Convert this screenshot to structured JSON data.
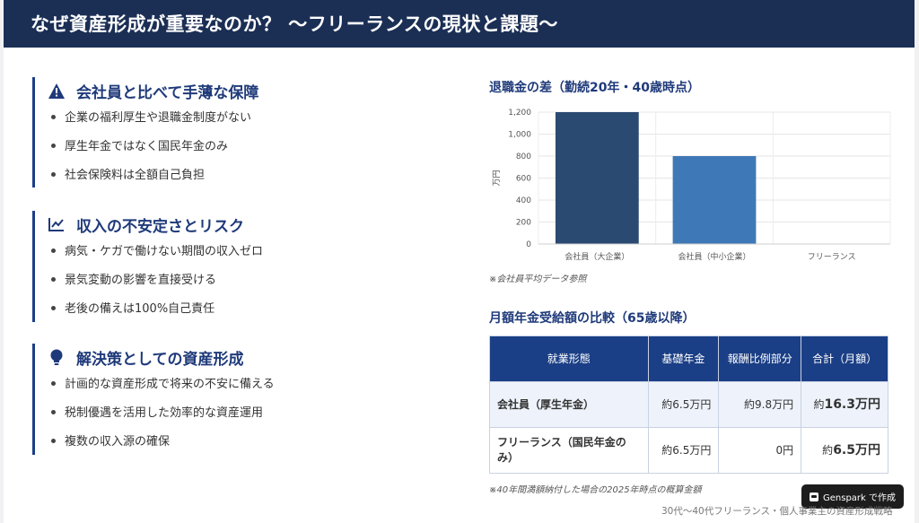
{
  "header": {
    "title": "なぜ資産形成が重要なのか？ 〜フリーランスの現状と課題〜"
  },
  "sections": [
    {
      "icon": "warning-icon",
      "title": "会社員と比べて手薄な保障",
      "bullets": [
        "企業の福利厚生や退職金制度がない",
        "厚生年金ではなく国民年金のみ",
        "社会保険料は全額自己負担"
      ]
    },
    {
      "icon": "trend-line-icon",
      "title": "収入の不安定さとリスク",
      "bullets": [
        "病気・ケガで働けない期間の収入ゼロ",
        "景気変動の影響を直接受ける",
        "老後の備えは100%自己責任"
      ]
    },
    {
      "icon": "lightbulb-icon",
      "title": "解決策としての資産形成",
      "bullets": [
        "計画的な資産形成で将来の不安に備える",
        "税制優遇を活用した効率的な資産運用",
        "複数の収入源の確保"
      ]
    }
  ],
  "chart_title": "退職金の差（勤続20年・40歳時点）",
  "chart_data": {
    "type": "bar",
    "categories": [
      "会社員（大企業）",
      "会社員（中小企業）",
      "フリーランス"
    ],
    "values": [
      1200,
      800,
      0
    ],
    "ylabel": "万円",
    "ylim": [
      0,
      1200
    ],
    "yticks": [
      "0",
      "200",
      "400",
      "600",
      "800",
      "1,000",
      "1,200"
    ],
    "colors": [
      "#2b4a72",
      "#3f78b6",
      "#3f78b6"
    ],
    "grid": true
  },
  "chart_note": "※会社員平均データ参照",
  "table_title": "月額年金受給額の比較（65歳以降）",
  "table": {
    "headers": [
      "就業形態",
      "基礎年金",
      "報酬比例部分",
      "合計（月額）"
    ],
    "rows": [
      {
        "type": "会社員（厚生年金）",
        "basic": "約6.5万円",
        "proportional": "約9.8万円",
        "total_prefix": "約",
        "total_value": "16.3万円"
      },
      {
        "type": "フリーランス（国民年金のみ）",
        "basic": "約6.5万円",
        "proportional": "0円",
        "total_prefix": "約",
        "total_value": "6.5万円"
      }
    ]
  },
  "table_note": "※40年間満額納付した場合の2025年時点の概算金額",
  "badge": {
    "label": "Genspark で作成"
  },
  "footer": "30代〜40代フリーランス・個人事業主の資産形成戦略"
}
